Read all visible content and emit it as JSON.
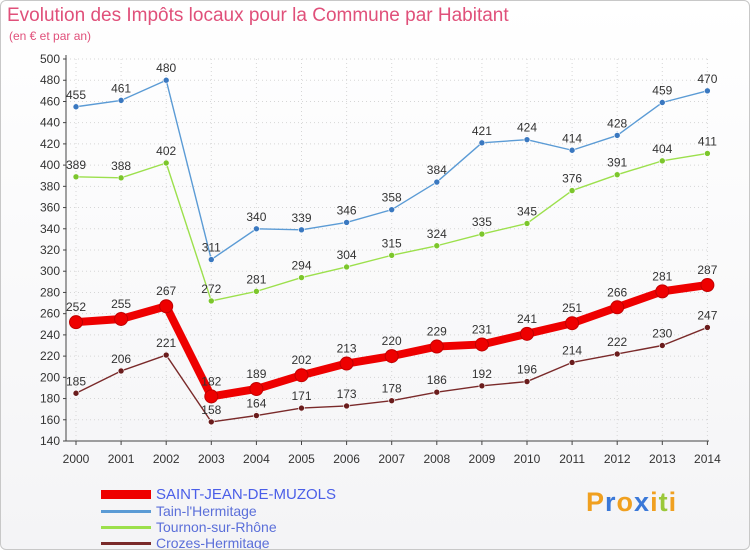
{
  "header": {
    "title": "Evolution des Impôts locaux pour la Commune par Habitant",
    "subtitle": "(en € et par an)"
  },
  "brand": {
    "text": "Proxiti",
    "letters": [
      {
        "ch": "P",
        "color": "#f0a020"
      },
      {
        "ch": "r",
        "color": "#3a78d8"
      },
      {
        "ch": "o",
        "color": "#f0a020"
      },
      {
        "ch": "x",
        "color": "#3a78d8"
      },
      {
        "ch": "i",
        "color": "#f0a020"
      },
      {
        "ch": "t",
        "color": "#9bc83a"
      },
      {
        "ch": "i",
        "color": "#f0a020"
      }
    ]
  },
  "chart_data": {
    "type": "line",
    "title": "Evolution des Impôts locaux pour la Commune par Habitant",
    "subtitle": "(en € et par an)",
    "xlabel": "",
    "ylabel": "",
    "ylim": [
      140,
      500
    ],
    "ytick_step": 20,
    "grid": true,
    "legend_position": "bottom-left",
    "categories": [
      "2000",
      "2001",
      "2002",
      "2003",
      "2004",
      "2005",
      "2006",
      "2007",
      "2008",
      "2009",
      "2010",
      "2011",
      "2012",
      "2013",
      "2014"
    ],
    "series": [
      {
        "name": "Tain-l'Hermitage",
        "color": "#5b9bd5",
        "marker": "#3a78c0",
        "values": [
          455,
          461,
          480,
          311,
          340,
          339,
          346,
          358,
          384,
          421,
          424,
          414,
          428,
          459,
          470
        ]
      },
      {
        "name": "Tournon-sur-Rhône",
        "color": "#9ce04c",
        "marker": "#7cc62c",
        "values": [
          389,
          388,
          402,
          272,
          281,
          294,
          304,
          315,
          324,
          335,
          345,
          376,
          391,
          404,
          411
        ]
      },
      {
        "name": "Crozes-Hermitage",
        "color": "#7a2a2a",
        "marker": "#6a1c1c",
        "values": [
          185,
          206,
          221,
          158,
          164,
          171,
          173,
          178,
          186,
          192,
          196,
          214,
          222,
          230,
          247
        ]
      },
      {
        "name": "SAINT-JEAN-DE-MUZOLS",
        "color": "#ee0000",
        "marker": "#ee0000",
        "values": [
          252,
          255,
          267,
          182,
          189,
          202,
          213,
          220,
          229,
          231,
          241,
          251,
          266,
          281,
          287
        ],
        "primary": true
      }
    ]
  }
}
